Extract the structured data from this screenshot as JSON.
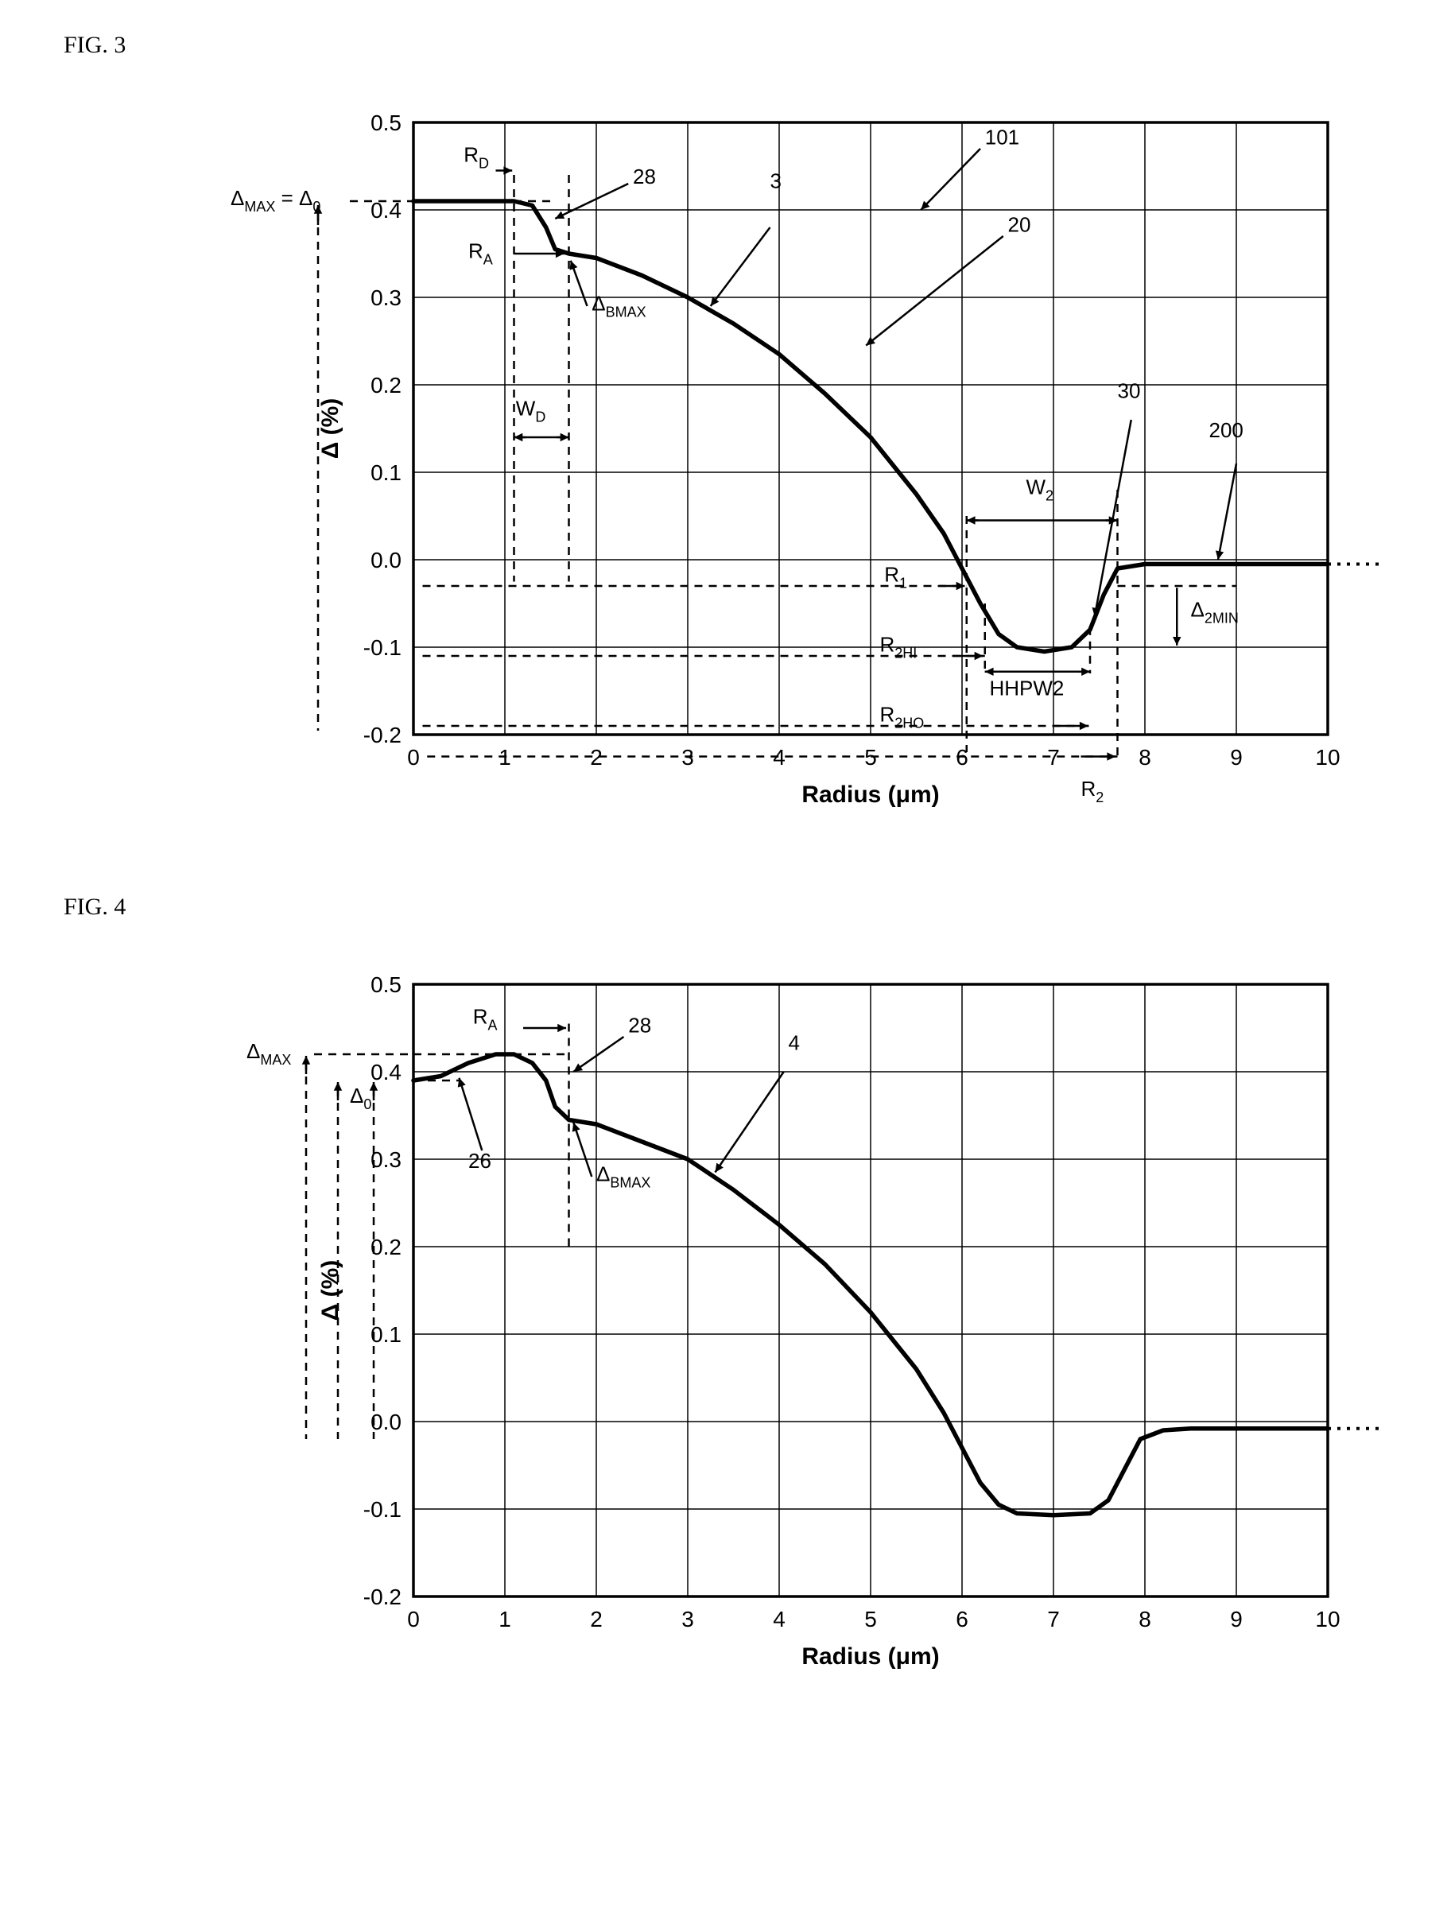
{
  "figures": {
    "fig3": {
      "label": "FIG. 3",
      "type": "line",
      "x_axis": {
        "title": "Radius (μm)",
        "min": 0,
        "max": 10,
        "step": 1
      },
      "y_axis": {
        "title": "Δ (%)",
        "min": -0.2,
        "max": 0.5,
        "step": 0.1
      },
      "grid_color": "#000000",
      "frame_width": 3,
      "grid_width": 1.5,
      "series_color": "#000000",
      "series_width": 5,
      "series_points": [
        [
          0,
          0.41
        ],
        [
          0.4,
          0.41
        ],
        [
          0.8,
          0.41
        ],
        [
          1.1,
          0.41
        ],
        [
          1.3,
          0.405
        ],
        [
          1.45,
          0.38
        ],
        [
          1.55,
          0.355
        ],
        [
          1.7,
          0.35
        ],
        [
          2.0,
          0.345
        ],
        [
          2.5,
          0.325
        ],
        [
          3.0,
          0.3
        ],
        [
          3.5,
          0.27
        ],
        [
          4.0,
          0.235
        ],
        [
          4.5,
          0.19
        ],
        [
          5.0,
          0.14
        ],
        [
          5.5,
          0.075
        ],
        [
          5.8,
          0.03
        ],
        [
          6.0,
          -0.01
        ],
        [
          6.2,
          -0.05
        ],
        [
          6.4,
          -0.085
        ],
        [
          6.6,
          -0.1
        ],
        [
          6.9,
          -0.105
        ],
        [
          7.2,
          -0.1
        ],
        [
          7.4,
          -0.08
        ],
        [
          7.55,
          -0.04
        ],
        [
          7.7,
          -0.01
        ],
        [
          8.0,
          -0.005
        ],
        [
          8.5,
          -0.005
        ],
        [
          9.0,
          -0.005
        ],
        [
          9.5,
          -0.005
        ],
        [
          10.0,
          -0.005
        ]
      ],
      "dotted_tail": [
        [
          10,
          -0.005
        ],
        [
          10.6,
          -0.005
        ]
      ],
      "annotations": {
        "rd": "R",
        "rd_sub": "D",
        "ra": "R",
        "ra_sub": "A",
        "wd": "W",
        "wd_sub": "D",
        "dbmax": "Δ",
        "dbmax_sub": "BMAX",
        "dmax_eq_d0": "Δ",
        "dmax_sub": "MAX",
        "eq": " = Δ",
        "d0_sub": "0",
        "r1": "R",
        "r1_sub": "1",
        "r2hi": "R",
        "r2hi_sub": "2HI",
        "r2ho": "R",
        "r2ho_sub": "2HO",
        "r2": "R",
        "r2_sub": "2",
        "w2": "W",
        "w2_sub": "2",
        "hhpw2": "HHPW2",
        "d2min": "Δ",
        "d2min_sub": "2MIN",
        "n28": "28",
        "n3": "3",
        "n101": "101",
        "n20": "20",
        "n30": "30",
        "n200": "200"
      }
    },
    "fig4": {
      "label": "FIG. 4",
      "type": "line",
      "x_axis": {
        "title": "Radius (μm)",
        "min": 0,
        "max": 10,
        "step": 1
      },
      "y_axis": {
        "title": "Δ (%)",
        "min": -0.2,
        "max": 0.5,
        "step": 0.1
      },
      "series_points": [
        [
          0,
          0.39
        ],
        [
          0.3,
          0.395
        ],
        [
          0.6,
          0.41
        ],
        [
          0.9,
          0.42
        ],
        [
          1.1,
          0.42
        ],
        [
          1.3,
          0.41
        ],
        [
          1.45,
          0.39
        ],
        [
          1.55,
          0.36
        ],
        [
          1.7,
          0.345
        ],
        [
          2.0,
          0.34
        ],
        [
          2.5,
          0.32
        ],
        [
          3.0,
          0.3
        ],
        [
          3.5,
          0.265
        ],
        [
          4.0,
          0.225
        ],
        [
          4.5,
          0.18
        ],
        [
          5.0,
          0.125
        ],
        [
          5.5,
          0.06
        ],
        [
          5.8,
          0.01
        ],
        [
          6.0,
          -0.03
        ],
        [
          6.2,
          -0.07
        ],
        [
          6.4,
          -0.095
        ],
        [
          6.6,
          -0.105
        ],
        [
          7.0,
          -0.107
        ],
        [
          7.4,
          -0.105
        ],
        [
          7.6,
          -0.09
        ],
        [
          7.8,
          -0.05
        ],
        [
          7.95,
          -0.02
        ],
        [
          8.2,
          -0.01
        ],
        [
          8.5,
          -0.008
        ],
        [
          9.0,
          -0.008
        ],
        [
          9.5,
          -0.008
        ],
        [
          10.0,
          -0.008
        ]
      ],
      "dotted_tail": [
        [
          10,
          -0.008
        ],
        [
          10.6,
          -0.008
        ]
      ],
      "annotations": {
        "ra": "R",
        "ra_sub": "A",
        "dmax": "Δ",
        "dmax_sub": "MAX",
        "d0": "Δ",
        "d0_sub": "0",
        "dbmax": "Δ",
        "dbmax_sub": "BMAX",
        "n26": "26",
        "n28": "28",
        "n4": "4"
      }
    }
  }
}
